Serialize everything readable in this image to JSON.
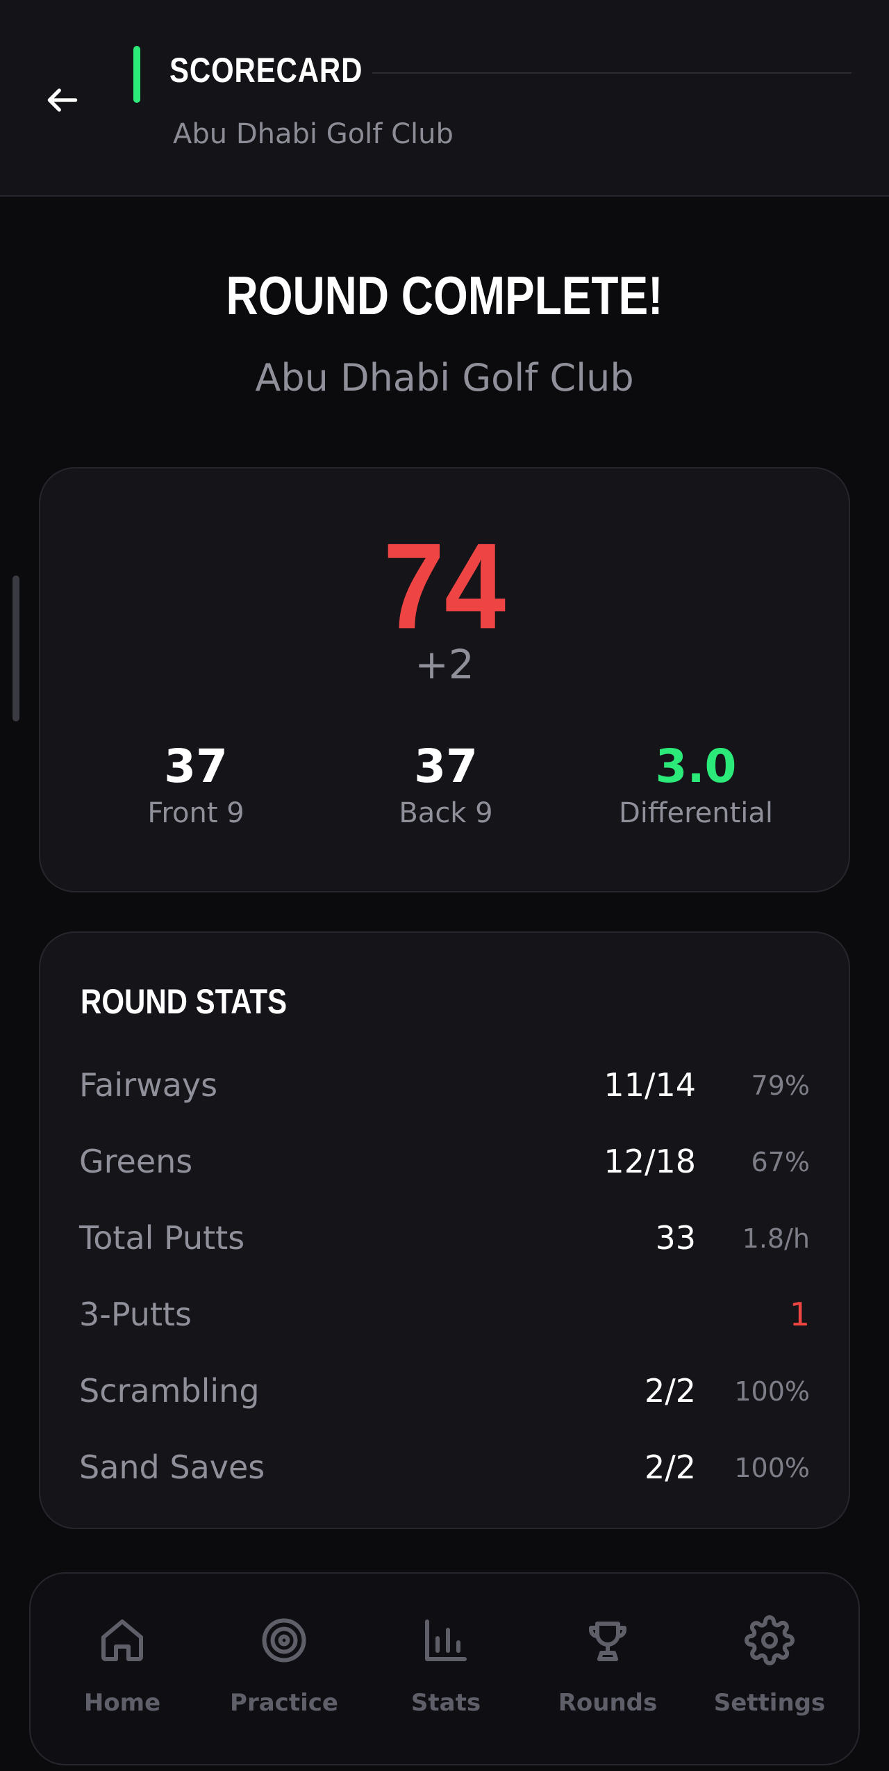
{
  "header": {
    "title": "SCORECARD",
    "subtitle": "Abu Dhabi Golf Club"
  },
  "hero": {
    "title": "ROUND COMPLETE!",
    "course": "Abu Dhabi Golf Club"
  },
  "score": {
    "total": "74",
    "to_par": "+2",
    "front9": {
      "value": "37",
      "label": "Front 9"
    },
    "back9": {
      "value": "37",
      "label": "Back 9"
    },
    "differential": {
      "value": "3.0",
      "label": "Differential"
    }
  },
  "round_stats": {
    "title": "ROUND STATS",
    "rows": [
      {
        "label": "Fairways",
        "value": "11/14",
        "extra": "79%"
      },
      {
        "label": "Greens",
        "value": "12/18",
        "extra": "67%"
      },
      {
        "label": "Total Putts",
        "value": "33",
        "extra": "1.8/h"
      },
      {
        "label": "3-Putts",
        "value": "",
        "extra": "1"
      },
      {
        "label": "Scrambling",
        "value": "2/2",
        "extra": "100%"
      },
      {
        "label": "Sand Saves",
        "value": "2/2",
        "extra": "100%"
      }
    ]
  },
  "nav": {
    "items": [
      {
        "label": "Home",
        "icon": "home-icon"
      },
      {
        "label": "Practice",
        "icon": "target-icon"
      },
      {
        "label": "Stats",
        "icon": "bar-chart-icon"
      },
      {
        "label": "Rounds",
        "icon": "trophy-icon"
      },
      {
        "label": "Settings",
        "icon": "gear-icon"
      }
    ]
  },
  "colors": {
    "accent": "#2bea79",
    "over_par": "#ef4444",
    "background": "#0b0b0e",
    "card": "#141419"
  }
}
